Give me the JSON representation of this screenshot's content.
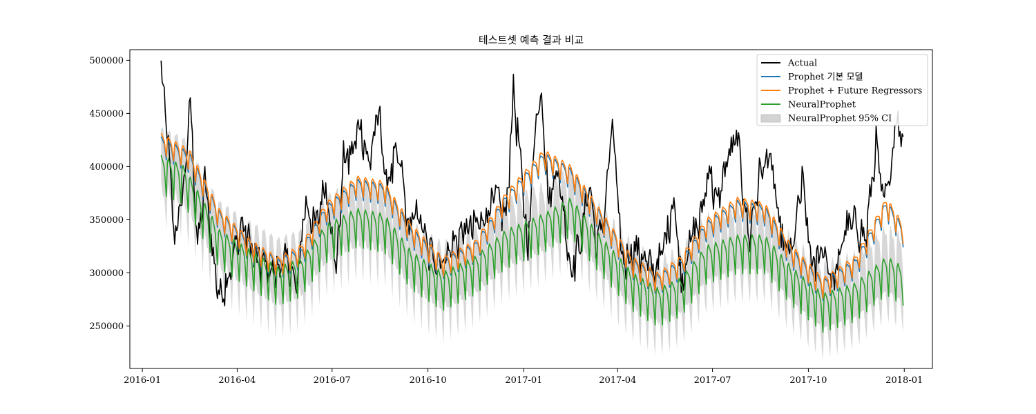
{
  "chart_data": {
    "type": "line",
    "title": "테스트셋 예측 결과 비교",
    "xlabel": "",
    "ylabel": "",
    "x_range": [
      "2015-12-20",
      "2018-01-28"
    ],
    "ylim": [
      210000,
      510000
    ],
    "x_ticks": [
      {
        "date": "2016-01-01",
        "label": "2016-01"
      },
      {
        "date": "2016-04-01",
        "label": "2016-04"
      },
      {
        "date": "2016-07-01",
        "label": "2016-07"
      },
      {
        "date": "2016-10-01",
        "label": "2016-10"
      },
      {
        "date": "2017-01-01",
        "label": "2017-01"
      },
      {
        "date": "2017-04-01",
        "label": "2017-04"
      },
      {
        "date": "2017-07-01",
        "label": "2017-07"
      },
      {
        "date": "2017-10-01",
        "label": "2017-10"
      },
      {
        "date": "2018-01-01",
        "label": "2018-01"
      }
    ],
    "y_ticks": [
      250000,
      300000,
      350000,
      400000,
      450000,
      500000
    ],
    "grid": false,
    "legend_position": "top-right",
    "date_start": "2016-01-19",
    "date_end": "2017-12-31",
    "series": [
      {
        "name": "Actual",
        "color": "#000000",
        "role": "actual",
        "anchors": [
          [
            "2016-01-19",
            489000
          ],
          [
            "2016-01-24",
            440000
          ],
          [
            "2016-02-01",
            330000
          ],
          [
            "2016-02-10",
            380000
          ],
          [
            "2016-02-16",
            460000
          ],
          [
            "2016-02-23",
            320000
          ],
          [
            "2016-03-01",
            385000
          ],
          [
            "2016-03-08",
            320000
          ],
          [
            "2016-03-15",
            275000
          ],
          [
            "2016-03-25",
            300000
          ],
          [
            "2016-04-05",
            345000
          ],
          [
            "2016-04-20",
            310000
          ],
          [
            "2016-05-05",
            300000
          ],
          [
            "2016-05-20",
            310000
          ],
          [
            "2016-05-28",
            280000
          ],
          [
            "2016-06-05",
            365000
          ],
          [
            "2016-06-15",
            340000
          ],
          [
            "2016-06-25",
            385000
          ],
          [
            "2016-07-05",
            300000
          ],
          [
            "2016-07-12",
            405000
          ],
          [
            "2016-07-20",
            410000
          ],
          [
            "2016-07-28",
            440000
          ],
          [
            "2016-08-05",
            400000
          ],
          [
            "2016-08-15",
            450000
          ],
          [
            "2016-08-22",
            380000
          ],
          [
            "2016-08-30",
            405000
          ],
          [
            "2016-09-05",
            400000
          ],
          [
            "2016-09-12",
            340000
          ],
          [
            "2016-09-22",
            355000
          ],
          [
            "2016-10-01",
            320000
          ],
          [
            "2016-10-15",
            310000
          ],
          [
            "2016-11-01",
            335000
          ],
          [
            "2016-11-20",
            345000
          ],
          [
            "2016-12-05",
            370000
          ],
          [
            "2016-12-15",
            350000
          ],
          [
            "2016-12-22",
            470000
          ],
          [
            "2016-12-28",
            410000
          ],
          [
            "2017-01-05",
            320000
          ],
          [
            "2017-01-12",
            440000
          ],
          [
            "2017-01-18",
            470000
          ],
          [
            "2017-01-25",
            360000
          ],
          [
            "2017-02-01",
            400000
          ],
          [
            "2017-02-08",
            360000
          ],
          [
            "2017-02-15",
            300000
          ],
          [
            "2017-02-25",
            330000
          ],
          [
            "2017-03-05",
            385000
          ],
          [
            "2017-03-12",
            320000
          ],
          [
            "2017-03-20",
            360000
          ],
          [
            "2017-03-27",
            440000
          ],
          [
            "2017-04-05",
            310000
          ],
          [
            "2017-04-20",
            320000
          ],
          [
            "2017-05-05",
            300000
          ],
          [
            "2017-05-15",
            320000
          ],
          [
            "2017-05-25",
            370000
          ],
          [
            "2017-06-01",
            290000
          ],
          [
            "2017-06-10",
            330000
          ],
          [
            "2017-06-20",
            350000
          ],
          [
            "2017-06-28",
            400000
          ],
          [
            "2017-07-05",
            360000
          ],
          [
            "2017-07-15",
            405000
          ],
          [
            "2017-07-25",
            425000
          ],
          [
            "2017-08-05",
            330000
          ],
          [
            "2017-08-15",
            390000
          ],
          [
            "2017-08-25",
            410000
          ],
          [
            "2017-09-05",
            330000
          ],
          [
            "2017-09-15",
            315000
          ],
          [
            "2017-09-25",
            385000
          ],
          [
            "2017-10-05",
            300000
          ],
          [
            "2017-10-15",
            325000
          ],
          [
            "2017-10-25",
            285000
          ],
          [
            "2017-11-05",
            340000
          ],
          [
            "2017-11-15",
            345000
          ],
          [
            "2017-11-25",
            330000
          ],
          [
            "2017-12-05",
            420000
          ],
          [
            "2017-12-12",
            360000
          ],
          [
            "2017-12-20",
            400000
          ],
          [
            "2017-12-24",
            455000
          ],
          [
            "2017-12-28",
            420000
          ],
          [
            "2017-12-31",
            440000
          ]
        ]
      },
      {
        "name": "Prophet 기본 모델",
        "color": "#1f77b4",
        "role": "prophet_base",
        "anchors": [
          [
            "2016-01-19",
            420000
          ],
          [
            "2016-02-15",
            405000
          ],
          [
            "2016-03-15",
            350000
          ],
          [
            "2016-04-15",
            320000
          ],
          [
            "2016-05-10",
            305000
          ],
          [
            "2016-06-01",
            315000
          ],
          [
            "2016-06-25",
            355000
          ],
          [
            "2016-07-25",
            380000
          ],
          [
            "2016-08-20",
            375000
          ],
          [
            "2016-09-15",
            335000
          ],
          [
            "2016-10-15",
            305000
          ],
          [
            "2016-11-15",
            320000
          ],
          [
            "2016-12-15",
            365000
          ],
          [
            "2017-01-20",
            405000
          ],
          [
            "2017-02-15",
            390000
          ],
          [
            "2017-03-15",
            350000
          ],
          [
            "2017-04-15",
            305000
          ],
          [
            "2017-05-10",
            290000
          ],
          [
            "2017-06-01",
            305000
          ],
          [
            "2017-06-25",
            340000
          ],
          [
            "2017-07-25",
            360000
          ],
          [
            "2017-08-20",
            355000
          ],
          [
            "2017-09-15",
            315000
          ],
          [
            "2017-10-15",
            285000
          ],
          [
            "2017-11-15",
            305000
          ],
          [
            "2017-12-15",
            360000
          ],
          [
            "2017-12-31",
            335000
          ]
        ],
        "weekly_amplitude": 20000
      },
      {
        "name": "Prophet + Future Regressors",
        "color": "#ff7f0e",
        "role": "prophet_reg",
        "anchors": [
          [
            "2016-01-19",
            423000
          ],
          [
            "2016-02-15",
            408000
          ],
          [
            "2016-03-15",
            352000
          ],
          [
            "2016-04-15",
            322000
          ],
          [
            "2016-05-10",
            307000
          ],
          [
            "2016-06-01",
            318000
          ],
          [
            "2016-06-25",
            358000
          ],
          [
            "2016-07-25",
            383000
          ],
          [
            "2016-08-20",
            378000
          ],
          [
            "2016-09-15",
            338000
          ],
          [
            "2016-10-15",
            307000
          ],
          [
            "2016-11-15",
            322000
          ],
          [
            "2016-12-15",
            368000
          ],
          [
            "2017-01-20",
            408000
          ],
          [
            "2017-02-15",
            393000
          ],
          [
            "2017-03-15",
            352000
          ],
          [
            "2017-04-15",
            307000
          ],
          [
            "2017-05-10",
            292000
          ],
          [
            "2017-06-01",
            308000
          ],
          [
            "2017-06-25",
            343000
          ],
          [
            "2017-07-25",
            363000
          ],
          [
            "2017-08-20",
            358000
          ],
          [
            "2017-09-15",
            318000
          ],
          [
            "2017-10-15",
            287000
          ],
          [
            "2017-11-15",
            308000
          ],
          [
            "2017-12-15",
            363000
          ],
          [
            "2017-12-31",
            338000
          ]
        ],
        "weekly_amplitude": 20000
      },
      {
        "name": "NeuralProphet",
        "color": "#2ca02c",
        "role": "neural",
        "anchors": [
          [
            "2016-01-19",
            395000
          ],
          [
            "2016-02-10",
            385000
          ],
          [
            "2016-03-15",
            325000
          ],
          [
            "2016-04-15",
            305000
          ],
          [
            "2016-05-10",
            290000
          ],
          [
            "2016-06-01",
            298000
          ],
          [
            "2016-06-25",
            330000
          ],
          [
            "2016-07-25",
            345000
          ],
          [
            "2016-08-20",
            340000
          ],
          [
            "2016-09-15",
            305000
          ],
          [
            "2016-10-15",
            285000
          ],
          [
            "2016-11-15",
            300000
          ],
          [
            "2016-12-15",
            325000
          ],
          [
            "2017-01-20",
            340000
          ],
          [
            "2017-02-15",
            355000
          ],
          [
            "2017-03-15",
            320000
          ],
          [
            "2017-04-15",
            285000
          ],
          [
            "2017-05-10",
            270000
          ],
          [
            "2017-06-01",
            280000
          ],
          [
            "2017-06-25",
            310000
          ],
          [
            "2017-07-25",
            320000
          ],
          [
            "2017-08-20",
            320000
          ],
          [
            "2017-09-15",
            290000
          ],
          [
            "2017-10-15",
            265000
          ],
          [
            "2017-11-15",
            275000
          ],
          [
            "2017-12-15",
            300000
          ],
          [
            "2017-12-31",
            290000
          ]
        ],
        "weekly_amplitude": 38000
      },
      {
        "name": "NeuralProphet 95% CI",
        "color": "#d3d3d3",
        "role": "ci",
        "band_halfwidth": 28000
      }
    ]
  }
}
